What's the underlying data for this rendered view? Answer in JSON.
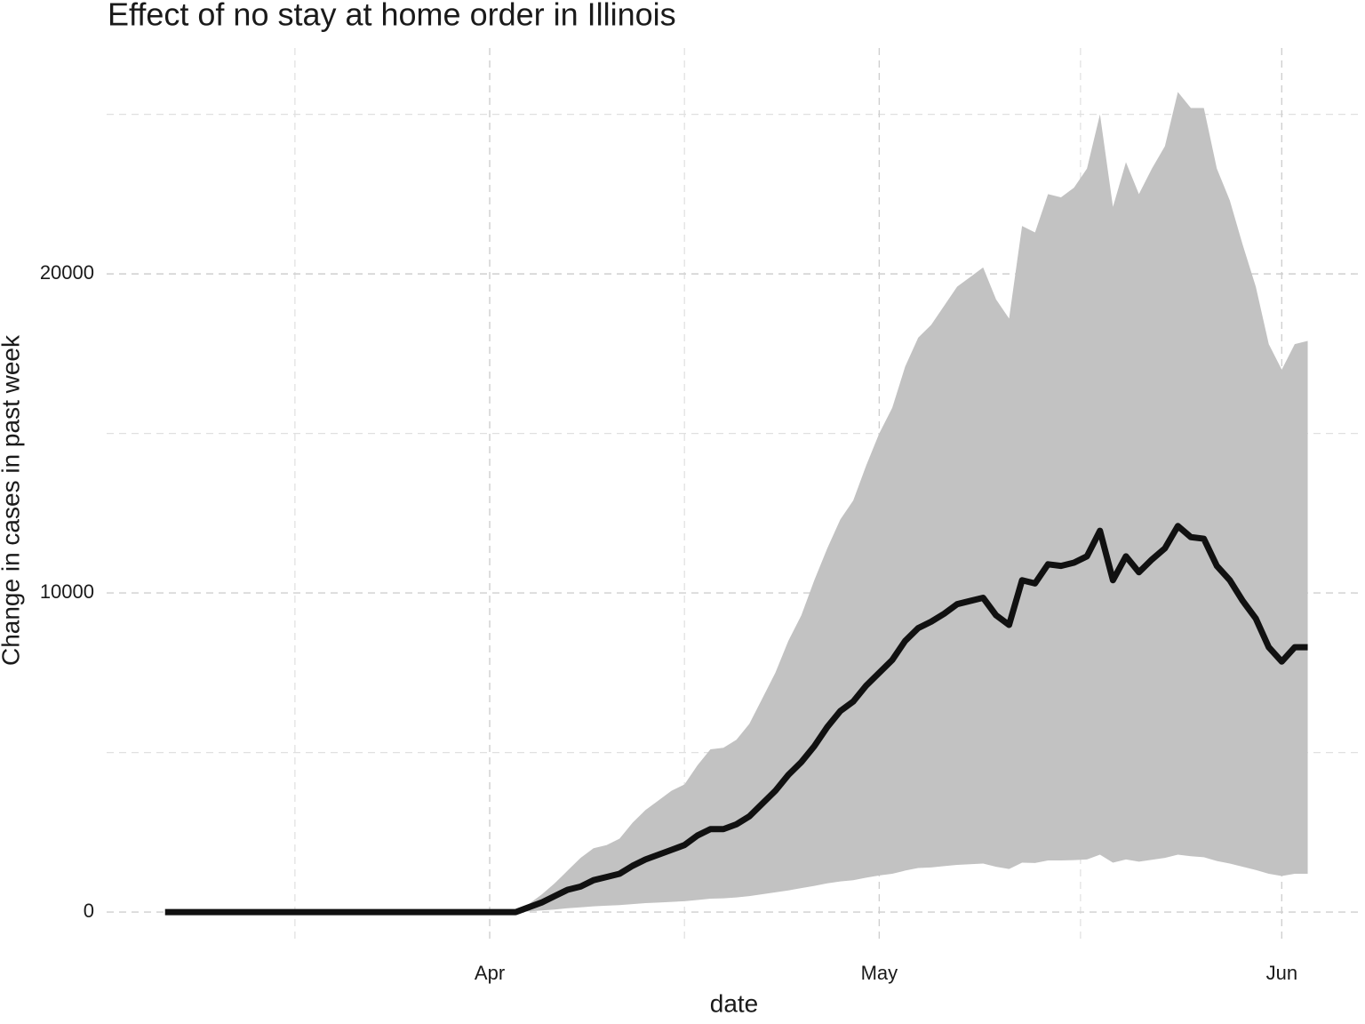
{
  "chart_data": {
    "type": "line",
    "title": "Effect of no stay at home order in Illinois",
    "x_label": "date",
    "y_label": "Change in cases in past week",
    "x": [
      0,
      1,
      2,
      3,
      4,
      5,
      6,
      7,
      8,
      9,
      10,
      11,
      12,
      13,
      14,
      15,
      16,
      17,
      18,
      19,
      20,
      21,
      22,
      23,
      24,
      25,
      26,
      27,
      28,
      29,
      30,
      31,
      32,
      33,
      34,
      35,
      36,
      37,
      38,
      39,
      40,
      41,
      42,
      43,
      44,
      45,
      46,
      47,
      48,
      49,
      50,
      51,
      52,
      53,
      54,
      55,
      56,
      57,
      58,
      59,
      60,
      61,
      62,
      63,
      64,
      65,
      66,
      67,
      68,
      69,
      70,
      71,
      72,
      73,
      74,
      75,
      76,
      77,
      78,
      79,
      80,
      81,
      82,
      83,
      84,
      85,
      86,
      87,
      88
    ],
    "values": [
      0,
      0,
      0,
      0,
      0,
      0,
      0,
      0,
      0,
      0,
      0,
      0,
      0,
      0,
      0,
      0,
      0,
      0,
      0,
      0,
      0,
      0,
      0,
      0,
      0,
      0,
      0,
      0,
      150,
      300,
      500,
      700,
      800,
      1000,
      1100,
      1200,
      1450,
      1650,
      1800,
      1950,
      2100,
      2400,
      2600,
      2600,
      2750,
      3000,
      3400,
      3800,
      4300,
      4700,
      5200,
      5800,
      6300,
      6600,
      7100,
      7500,
      7900,
      8500,
      8900,
      9100,
      9350,
      9650,
      9750,
      9850,
      9300,
      9000,
      10400,
      10300,
      10900,
      10850,
      10950,
      11150,
      11950,
      10400,
      11150,
      10650,
      11050,
      11400,
      12100,
      11750,
      11700,
      10850,
      10400,
      9750,
      9200,
      8300,
      7850,
      8300,
      8300
    ],
    "upper": [
      0,
      0,
      0,
      0,
      0,
      0,
      0,
      0,
      0,
      0,
      0,
      0,
      0,
      0,
      0,
      0,
      0,
      0,
      0,
      0,
      0,
      0,
      0,
      0,
      0,
      0,
      0,
      0,
      250,
      550,
      900,
      1300,
      1700,
      2000,
      2100,
      2300,
      2800,
      3200,
      3500,
      3800,
      4000,
      4600,
      5100,
      5150,
      5400,
      5900,
      6700,
      7500,
      8500,
      9300,
      10400,
      11400,
      12300,
      12900,
      14000,
      15000,
      15800,
      17100,
      18000,
      18400,
      19000,
      19600,
      19900,
      20200,
      19200,
      18600,
      21500,
      21300,
      22500,
      22400,
      22700,
      23300,
      25000,
      22100,
      23500,
      22500,
      23300,
      24000,
      25700,
      25200,
      25200,
      23300,
      22300,
      20900,
      19600,
      17800,
      17000,
      17800,
      17900
    ],
    "lower": [
      0,
      0,
      0,
      0,
      0,
      0,
      0,
      0,
      0,
      0,
      0,
      0,
      0,
      0,
      0,
      0,
      0,
      0,
      0,
      0,
      0,
      0,
      0,
      0,
      0,
      0,
      0,
      0,
      20,
      50,
      80,
      120,
      150,
      180,
      200,
      220,
      250,
      280,
      300,
      320,
      340,
      380,
      420,
      430,
      460,
      500,
      560,
      620,
      680,
      750,
      820,
      900,
      960,
      1000,
      1080,
      1150,
      1200,
      1300,
      1380,
      1400,
      1440,
      1480,
      1500,
      1520,
      1420,
      1350,
      1550,
      1540,
      1620,
      1620,
      1630,
      1650,
      1800,
      1550,
      1650,
      1580,
      1640,
      1700,
      1800,
      1750,
      1720,
      1600,
      1520,
      1420,
      1320,
      1200,
      1130,
      1200,
      1200
    ],
    "color": "#111111",
    "band_color": "#c2c2c2",
    "xlim": [
      -4.5,
      92
    ],
    "xticks": [
      {
        "value": 25,
        "label": "Apr"
      },
      {
        "value": 55,
        "label": "May"
      },
      {
        "value": 86,
        "label": "Jun"
      }
    ],
    "xminor": [
      10,
      40,
      70.5
    ],
    "ylim": [
      -1000,
      26800
    ],
    "yticks": [
      0,
      10000,
      20000
    ],
    "yminor": [
      5000,
      15000,
      25000
    ],
    "grid": true
  }
}
